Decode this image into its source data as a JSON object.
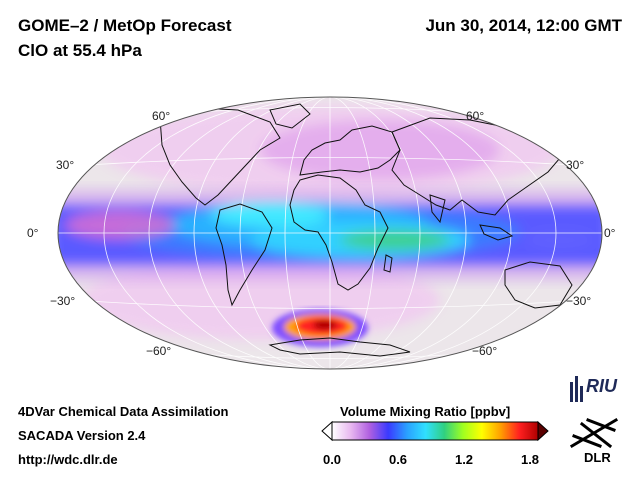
{
  "header": {
    "title_line1": "GOME–2 / MetOp Forecast",
    "title_line2": "ClO at 55.4 hPa",
    "datetime": "Jun 30, 2014, 12:00 GMT"
  },
  "map": {
    "projection": "Hammer-Aitoff",
    "latitude_labels": {
      "n60_left": "60°",
      "n30_left": "30°",
      "eq_left": "0°",
      "s30_left": "−30°",
      "s60_left": "−60°",
      "n60_right": "60°",
      "n30_right": "30°",
      "eq_right": "0°",
      "s30_right": "−30°",
      "s60_right": "−60°"
    }
  },
  "footer": {
    "line1": "4DVar Chemical Data Assimilation",
    "line2": "SACADA Version 2.4",
    "line3": "http://wdc.dlr.de"
  },
  "colorbar": {
    "title": "Volume Mixing Ratio [ppbv]",
    "ticks": [
      "0.0",
      "0.6",
      "1.2",
      "1.8"
    ],
    "colors": [
      "#ffffff",
      "#e8b8f0",
      "#b060e0",
      "#3a3aff",
      "#2aa0ff",
      "#30e0ff",
      "#30d080",
      "#a0ff20",
      "#ffff00",
      "#ffa000",
      "#ff2020",
      "#b00000"
    ]
  },
  "logos": {
    "riu": "RIU",
    "dlr": "DLR"
  }
}
